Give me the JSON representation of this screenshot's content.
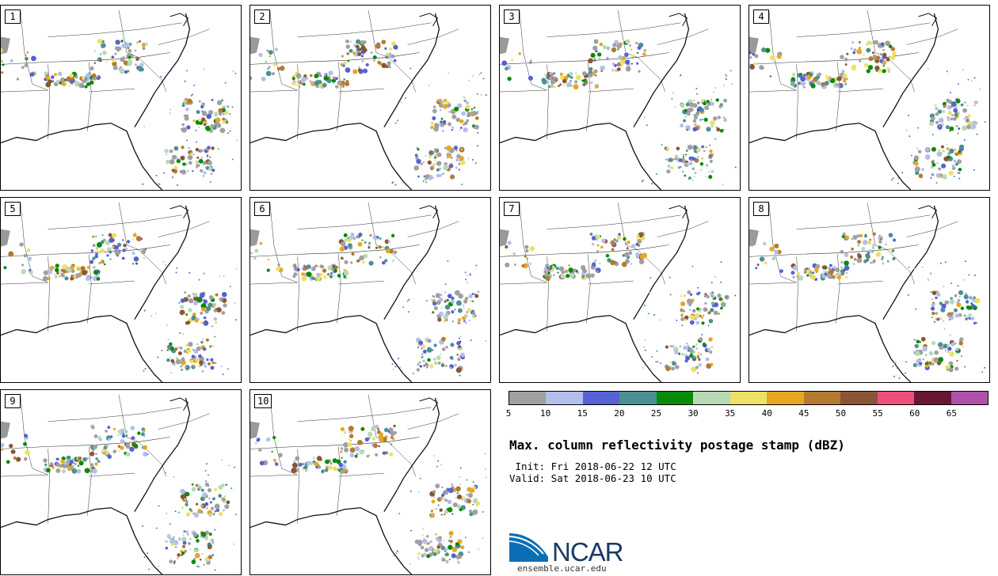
{
  "panels": [
    {
      "label": "1"
    },
    {
      "label": "2"
    },
    {
      "label": "3"
    },
    {
      "label": "4"
    },
    {
      "label": "5"
    },
    {
      "label": "6"
    },
    {
      "label": "7"
    },
    {
      "label": "8"
    },
    {
      "label": "9"
    },
    {
      "label": "10"
    }
  ],
  "colorbar": {
    "colors": [
      "#a0a0a0",
      "#b3bfea",
      "#5661d6",
      "#4b9093",
      "#0a8a0a",
      "#b8d9b6",
      "#ede066",
      "#e7a722",
      "#b37a2f",
      "#8a5535",
      "#ee4f7d",
      "#6a1536",
      "#b050a8"
    ],
    "ticks": [
      "5",
      "10",
      "15",
      "20",
      "25",
      "30",
      "35",
      "40",
      "45",
      "50",
      "55",
      "60",
      "65"
    ]
  },
  "title": "Max. column reflectivity postage stamp (dBZ)",
  "init_text": " Init: Fri 2018-06-22 12 UTC",
  "valid_text": "Valid: Sat 2018-06-23 10 UTC",
  "logo": {
    "brand": "NCAR",
    "url": "ensemble.ucar.edu",
    "colors": {
      "blue": "#0a6fb5",
      "dark": "#1b3a66"
    }
  }
}
